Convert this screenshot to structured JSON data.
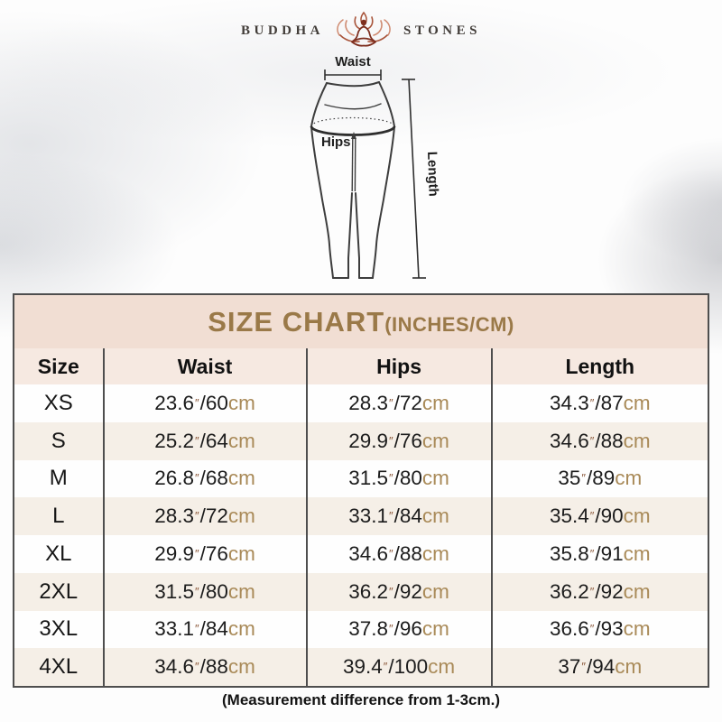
{
  "brand": {
    "left": "BUDDHA",
    "right": "STONES"
  },
  "diagram": {
    "waist_label": "Waist",
    "hips_label": "Hips",
    "length_label": "Length"
  },
  "table": {
    "title": "SIZE CHART",
    "title_suffix": "(INCHES/CM)",
    "columns": [
      "Size",
      "Waist",
      "Hips",
      "Length"
    ],
    "rows": [
      {
        "size": "XS",
        "waist": {
          "in": "23.6",
          "cm": "60"
        },
        "hips": {
          "in": "28.3",
          "cm": "72 "
        },
        "length": {
          "in": "34.3",
          "cm": "87"
        }
      },
      {
        "size": "S",
        "waist": {
          "in": "25.2",
          "cm": "64"
        },
        "hips": {
          "in": "29.9",
          "cm": "76"
        },
        "length": {
          "in": "34.6",
          "cm": "88"
        }
      },
      {
        "size": "M",
        "waist": {
          "in": "26.8",
          "cm": "68"
        },
        "hips": {
          "in": "31.5",
          "cm": "80"
        },
        "length": {
          "in": "35",
          "cm": "89"
        }
      },
      {
        "size": "L",
        "waist": {
          "in": "28.3",
          "cm": "72"
        },
        "hips": {
          "in": "33.1",
          "cm": "84"
        },
        "length": {
          "in": "35.4",
          "cm": "90"
        }
      },
      {
        "size": "XL",
        "waist": {
          "in": "29.9",
          "cm": "76"
        },
        "hips": {
          "in": "34.6",
          "cm": "88"
        },
        "length": {
          "in": "35.8",
          "cm": "91"
        }
      },
      {
        "size": "2XL",
        "waist": {
          "in": "31.5",
          "cm": "80"
        },
        "hips": {
          "in": "36.2",
          "cm": "92 "
        },
        "length": {
          "in": "36.2",
          "cm": "92"
        }
      },
      {
        "size": "3XL",
        "waist": {
          "in": "33.1",
          "cm": "84"
        },
        "hips": {
          "in": "37.8",
          "cm": "96 "
        },
        "length": {
          "in": "36.6",
          "cm": "93"
        }
      },
      {
        "size": "4XL",
        "waist": {
          "in": "34.6",
          "cm": "88"
        },
        "hips": {
          "in": "39.4",
          "cm": "100 "
        },
        "length": {
          "in": "37",
          "cm": "94"
        }
      }
    ],
    "footnote": "(Measurement difference from 1-3cm.)"
  },
  "chart_data": {
    "type": "table",
    "title": "SIZE CHART(INCHES/CM)",
    "columns": [
      "Size",
      "Waist",
      "Hips",
      "Length"
    ],
    "rows": [
      [
        "XS",
        "23.6\"/60cm",
        "28.3\"/72 cm",
        "34.3\"/87cm"
      ],
      [
        "S",
        "25.2\"/64cm",
        "29.9\"/76cm",
        "34.6\"/88cm"
      ],
      [
        "M",
        "26.8\"/68cm",
        "31.5\"/80cm",
        "35\"/89cm"
      ],
      [
        "L",
        "28.3\"/72cm",
        "33.1\"/84cm",
        "35.4\"/90cm"
      ],
      [
        "XL",
        "29.9\"/76cm",
        "34.6\"/88cm",
        "35.8\"/91cm"
      ],
      [
        "2XL",
        "31.5\"/80cm",
        "36.2\"/92 cm",
        "36.2\"/92cm"
      ],
      [
        "3XL",
        "33.1\"/84cm",
        "37.8\"/96 cm",
        "36.6\"/93cm"
      ],
      [
        "4XL",
        "34.6\"/88cm",
        "39.4\"/100 cm",
        "37\"/94cm"
      ]
    ],
    "footnote": "(Measurement difference from 1-3cm.)"
  },
  "colors": {
    "accent_gold": "#9a7948",
    "cm_color": "#a98a58",
    "inch_color": "#8a5638",
    "title_bg": "#f1ded3",
    "header_bg": "#f6e9e1",
    "row_alt_bg": "#f5efe7",
    "border_color": "#4e4e4e",
    "brand_maroon": "#7e2f1f"
  }
}
